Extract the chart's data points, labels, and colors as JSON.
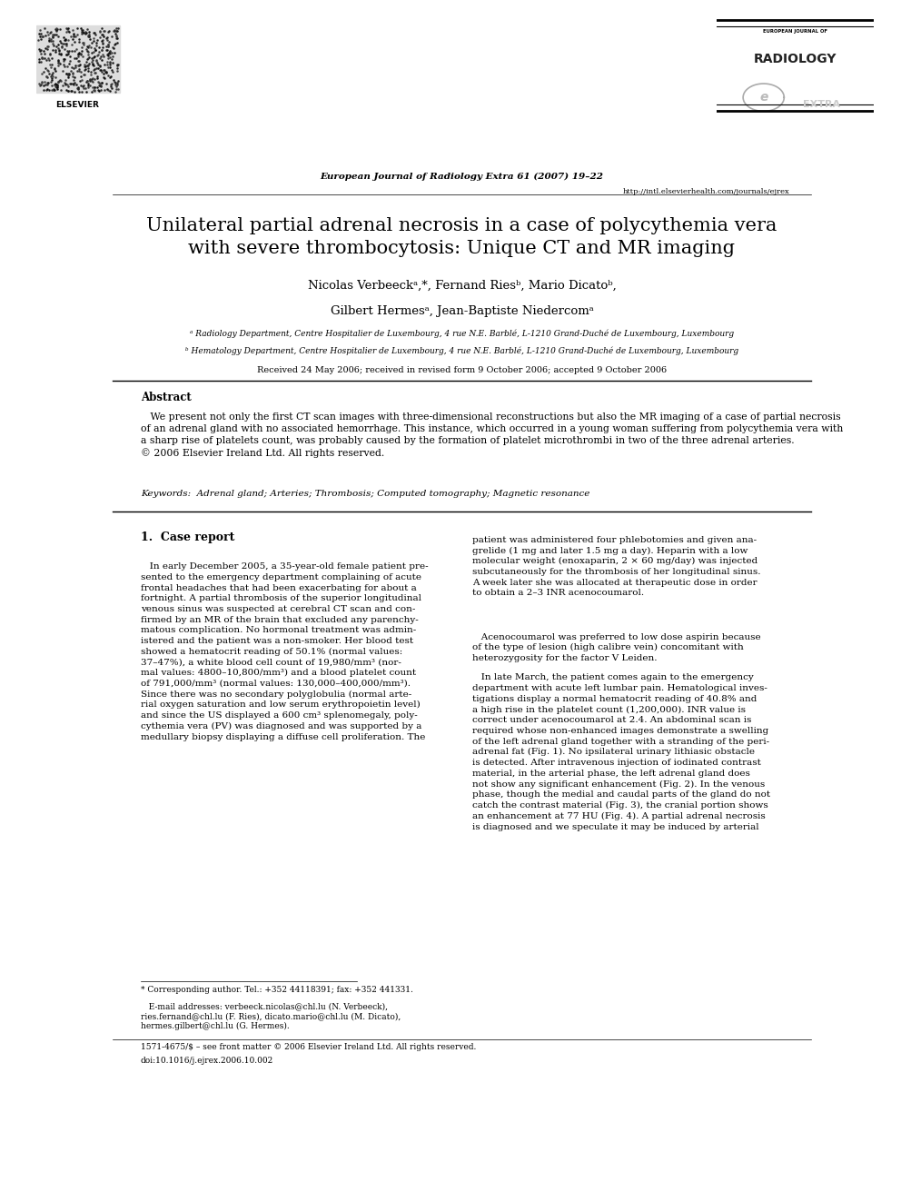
{
  "bg_color": "#ffffff",
  "page_width": 9.92,
  "page_height": 13.23,
  "journal_center": "European Journal of Radiology Extra 61 (2007) 19–22",
  "url": "http://intl.elsevierhealth.com/journals/ejrex",
  "title": "Unilateral partial adrenal necrosis in a case of polycythemia vera\nwith severe thrombocytosis: Unique CT and MR imaging",
  "authors_line1": "Nicolas Verbeeckᵃ,*, Fernand Riesᵇ, Mario Dicatoᵇ,",
  "authors_line2": "Gilbert Hermesᵃ, Jean-Baptiste Niedercomᵃ",
  "affil_a": "ᵃ Radiology Department, Centre Hospitalier de Luxembourg, 4 rue N.E. Barblé, L-1210 Grand-Duché de Luxembourg, Luxembourg",
  "affil_b": "ᵇ Hematology Department, Centre Hospitalier de Luxembourg, 4 rue N.E. Barblé, L-1210 Grand-Duché de Luxembourg, Luxembourg",
  "received": "Received 24 May 2006; received in revised form 9 October 2006; accepted 9 October 2006",
  "abstract_title": "Abstract",
  "abstract_text": "   We present not only the first CT scan images with three-dimensional reconstructions but also the MR imaging of a case of partial necrosis\nof an adrenal gland with no associated hemorrhage. This instance, which occurred in a young woman suffering from polycythemia vera with\na sharp rise of platelets count, was probably caused by the formation of platelet microthrombi in two of the three adrenal arteries.\n© 2006 Elsevier Ireland Ltd. All rights reserved.",
  "keywords": "Keywords:  Adrenal gland; Arteries; Thrombosis; Computed tomography; Magnetic resonance",
  "section1_title": "1.  Case report",
  "col1_para1": "   In early December 2005, a 35-year-old female patient pre-\nsented to the emergency department complaining of acute\nfrontal headaches that had been exacerbating for about a\nfortnight. A partial thrombosis of the superior longitudinal\nvenous sinus was suspected at cerebral CT scan and con-\nfirmed by an MR of the brain that excluded any parenchy-\nmatous complication. No hormonal treatment was admin-\nistered and the patient was a non-smoker. Her blood test\nshowed a hematocrit reading of 50.1% (normal values:\n37–47%), a white blood cell count of 19,980/mm³ (nor-\nmal values: 4800–10,800/mm³) and a blood platelet count\nof 791,000/mm³ (normal values: 130,000–400,000/mm³).\nSince there was no secondary polyglobulia (normal arte-\nrial oxygen saturation and low serum erythropoietin level)\nand since the US displayed a 600 cm³ splenomegaly, poly-\ncythemia vera (PV) was diagnosed and was supported by a\nmedullary biopsy displaying a diffuse cell proliferation. The",
  "col2_para1": "patient was administered four phlebotomies and given ana-\ngrelide (1 mg and later 1.5 mg a day). Heparin with a low\nmolecular weight (enoxaparin, 2 × 60 mg/day) was injected\nsubcutaneously for the thrombosis of her longitudinal sinus.\nA week later she was allocated at therapeutic dose in order\nto obtain a 2–3 INR acenocoumarol.",
  "col2_para2": "   Acenocoumarol was preferred to low dose aspirin because\nof the type of lesion (high calibre vein) concomitant with\nheterozygosity for the factor V Leiden.",
  "col2_para3": "   In late March, the patient comes again to the emergency\ndepartment with acute left lumbar pain. Hematological inves-\ntigations display a normal hematocrit reading of 40.8% and\na high rise in the platelet count (1,200,000). INR value is\ncorrect under acenocoumarol at 2.4. An abdominal scan is\nrequired whose non-enhanced images demonstrate a swelling\nof the left adrenal gland together with a stranding of the peri-\nadrenal fat (Fig. 1). No ipsilateral urinary lithiasic obstacle\nis detected. After intravenous injection of iodinated contrast\nmaterial, in the arterial phase, the left adrenal gland does\nnot show any significant enhancement (Fig. 2). In the venous\nphase, though the medial and caudal parts of the gland do not\ncatch the contrast material (Fig. 3), the cranial portion shows\nan enhancement at 77 HU (Fig. 4). A partial adrenal necrosis\nis diagnosed and we speculate it may be induced by arterial",
  "footnote_star": "* Corresponding author. Tel.: +352 44118391; fax: +352 441331.",
  "footnote_email": "   E-mail addresses: verbeeck.nicolas@chl.lu (N. Verbeeck),\nries.fernand@chl.lu (F. Ries), dicato.mario@chl.lu (M. Dicato),\nhermes.gilbert@chl.lu (G. Hermes).",
  "footer_line1": "1571-4675/$ – see front matter © 2006 Elsevier Ireland Ltd. All rights reserved.",
  "footer_line2": "doi:10.1016/j.ejrex.2006.10.002"
}
